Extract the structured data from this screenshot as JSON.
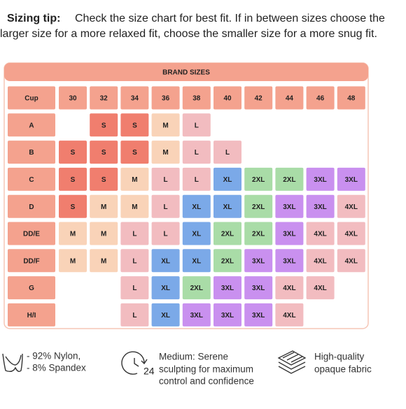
{
  "tip": {
    "label": "Sizing tip:",
    "lines": [
      "Check the size chart for best fit. If in between sizes choose the",
      "larger size for a more relaxed fit, choose the smaller size for a more snug fit."
    ]
  },
  "table": {
    "title": "BRAND SIZES",
    "header": [
      "Cup",
      "30",
      "32",
      "34",
      "36",
      "38",
      "40",
      "42",
      "44",
      "46",
      "48"
    ],
    "rows": [
      [
        "A",
        null,
        "S",
        "S",
        "M",
        "L",
        null,
        null,
        null,
        null,
        null
      ],
      [
        "B",
        "S",
        "S",
        "S",
        "M",
        "L",
        "L",
        null,
        null,
        null,
        null
      ],
      [
        "C",
        "S",
        "S",
        "M",
        "L",
        "L",
        "XL",
        "2XL",
        "2XL",
        "3XL",
        "3XL"
      ],
      [
        "D",
        "S",
        "M",
        "M",
        "L",
        "XL",
        "XL",
        "2XL",
        "3XL",
        "3XL",
        "4XL"
      ],
      [
        "DD/E",
        "M",
        "M",
        "L",
        "L",
        "XL",
        "2XL",
        "2XL",
        "3XL",
        "4XL",
        "4XL"
      ],
      [
        "DD/F",
        "M",
        "M",
        "L",
        "XL",
        "XL",
        "2XL",
        "3XL",
        "3XL",
        "4XL",
        "4XL"
      ],
      [
        "G",
        null,
        null,
        "L",
        "XL",
        "2XL",
        "3XL",
        "3XL",
        "4XL",
        "4XL",
        null
      ],
      [
        "H/I",
        null,
        null,
        "L",
        "XL",
        "3XL",
        "3XL",
        "3XL",
        "4XL",
        null,
        null
      ]
    ],
    "size_colors": {
      "S": "#f07e6e",
      "M": "#f9d3b8",
      "L": "#f2bcc0",
      "XL": "#7ba9e8",
      "2XL": "#a9dca7",
      "3XL": "#c990ef",
      "4XL": "#f2bcc0"
    },
    "label_color": "#f4a28e"
  },
  "features": [
    {
      "lines": [
        "- 92% Nylon,",
        "- 8% Spandex"
      ]
    },
    {
      "lines": [
        "Medium: Serene",
        "sculpting for maximum",
        "control and confidence"
      ]
    },
    {
      "lines": [
        "High-quality",
        "opaque fabric"
      ]
    }
  ]
}
